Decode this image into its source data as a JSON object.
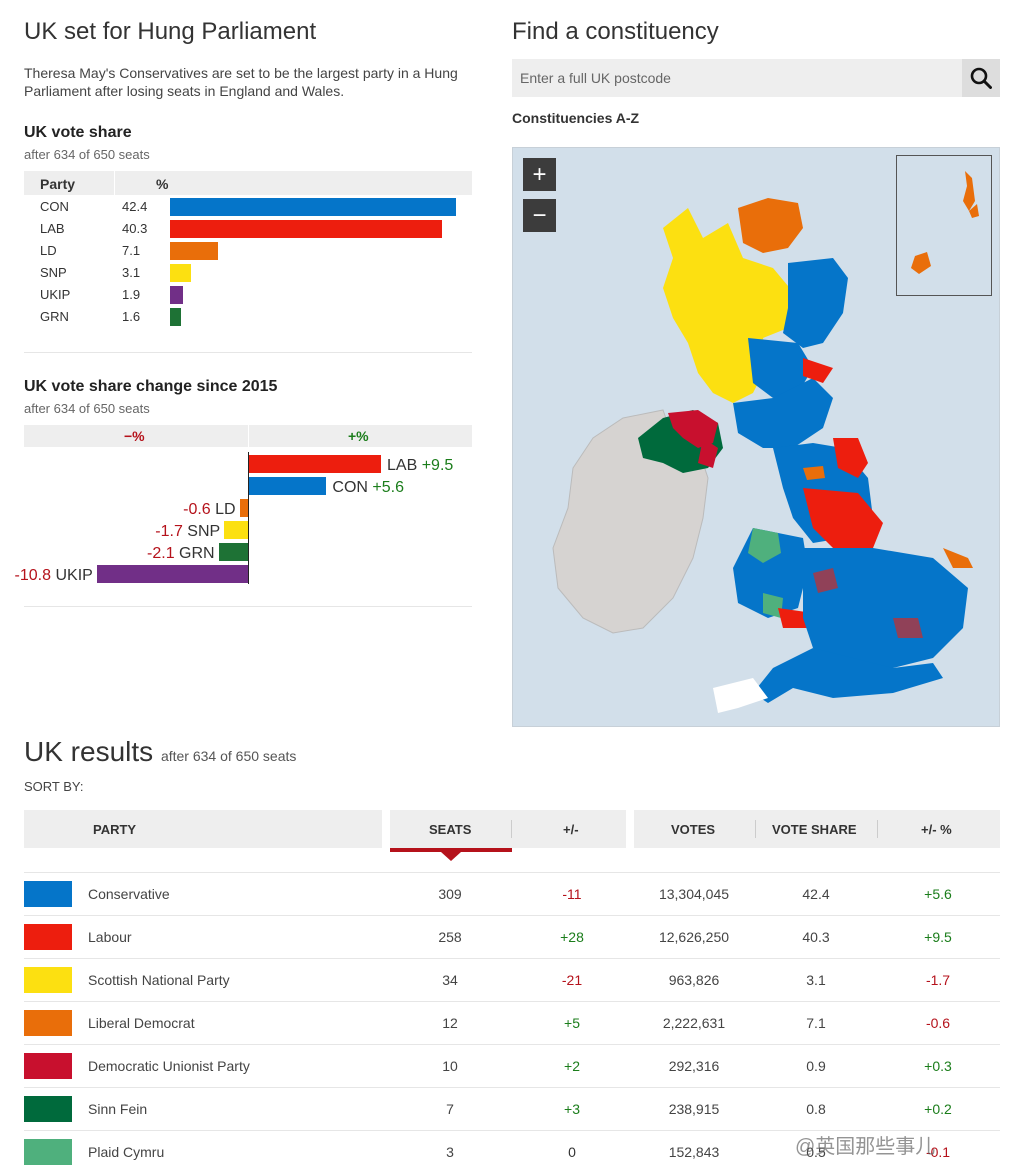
{
  "header": {
    "title": "UK set for Hung Parliament",
    "intro": "Theresa May's Conservatives are set to be the largest party in a Hung Parliament after losing seats in England and Wales."
  },
  "vote_share": {
    "title": "UK vote share",
    "subtitle": "after 634 of 650 seats",
    "col_party": "Party",
    "col_pct": "%",
    "rows": [
      {
        "party": "CON",
        "value": "42.4",
        "color": "#0575c9"
      },
      {
        "party": "LAB",
        "value": "40.3",
        "color": "#ed1e0e"
      },
      {
        "party": "LD",
        "value": "7.1",
        "color": "#e96e0a"
      },
      {
        "party": "SNP",
        "value": "3.1",
        "color": "#fce011"
      },
      {
        "party": "UKIP",
        "value": "1.9",
        "color": "#712f87"
      },
      {
        "party": "GRN",
        "value": "1.6",
        "color": "#1e7235"
      }
    ]
  },
  "vote_change": {
    "title": "UK vote share change since 2015",
    "subtitle": "after 634 of 650 seats",
    "neg_label": "−%",
    "pos_label": "+%",
    "rows": [
      {
        "party": "LAB",
        "change": "+9.5",
        "color": "#ed1e0e"
      },
      {
        "party": "CON",
        "change": "+5.6",
        "color": "#0575c9"
      },
      {
        "party": "LD",
        "change": "-0.6",
        "color": "#e96e0a"
      },
      {
        "party": "SNP",
        "change": "-1.7",
        "color": "#fce011"
      },
      {
        "party": "GRN",
        "change": "-2.1",
        "color": "#1e7235"
      },
      {
        "party": "UKIP",
        "change": "-10.8",
        "color": "#712f87"
      }
    ]
  },
  "chart_data": [
    {
      "type": "bar",
      "title": "UK vote share",
      "subtitle": "after 634 of 650 seats",
      "categories": [
        "CON",
        "LAB",
        "LD",
        "SNP",
        "UKIP",
        "GRN"
      ],
      "values": [
        42.4,
        40.3,
        7.1,
        3.1,
        1.9,
        1.6
      ],
      "ylabel": "%"
    },
    {
      "type": "bar",
      "title": "UK vote share change since 2015",
      "subtitle": "after 634 of 650 seats",
      "categories": [
        "LAB",
        "CON",
        "LD",
        "SNP",
        "GRN",
        "UKIP"
      ],
      "values": [
        9.5,
        5.6,
        -0.6,
        -1.7,
        -2.1,
        -10.8
      ]
    }
  ],
  "find": {
    "title": "Find a constituency",
    "placeholder": "Enter a full UK postcode",
    "az_link": "Constituencies A-Z"
  },
  "map": {
    "zoom_in": "+",
    "zoom_out": "−"
  },
  "results": {
    "title": "UK results",
    "subtitle": "after 634 of 650 seats",
    "sort_by": "SORT BY:",
    "headers": {
      "party": "PARTY",
      "seats": "SEATS",
      "seats_change": "+/-",
      "votes": "VOTES",
      "vote_share": "VOTE SHARE",
      "share_change": "+/- %"
    },
    "rows": [
      {
        "name": "Conservative",
        "color": "#0575c9",
        "seats": "309",
        "seats_change": "-11",
        "votes": "13,304,045",
        "share": "42.4",
        "share_change": "+5.6"
      },
      {
        "name": "Labour",
        "color": "#ed1e0e",
        "seats": "258",
        "seats_change": "+28",
        "votes": "12,626,250",
        "share": "40.3",
        "share_change": "+9.5"
      },
      {
        "name": "Scottish National Party",
        "color": "#fce011",
        "seats": "34",
        "seats_change": "-21",
        "votes": "963,826",
        "share": "3.1",
        "share_change": "-1.7"
      },
      {
        "name": "Liberal Democrat",
        "color": "#e96e0a",
        "seats": "12",
        "seats_change": "+5",
        "votes": "2,222,631",
        "share": "7.1",
        "share_change": "-0.6"
      },
      {
        "name": "Democratic Unionist Party",
        "color": "#c8102e",
        "seats": "10",
        "seats_change": "+2",
        "votes": "292,316",
        "share": "0.9",
        "share_change": "+0.3"
      },
      {
        "name": "Sinn Fein",
        "color": "#006a3c",
        "seats": "7",
        "seats_change": "+3",
        "votes": "238,915",
        "share": "0.8",
        "share_change": "+0.2"
      },
      {
        "name": "Plaid Cymru",
        "color": "#4fb07d",
        "seats": "3",
        "seats_change": "0",
        "votes": "152,843",
        "share": "0.5",
        "share_change": "-0.1"
      }
    ]
  },
  "watermark": "@英国那些事儿"
}
